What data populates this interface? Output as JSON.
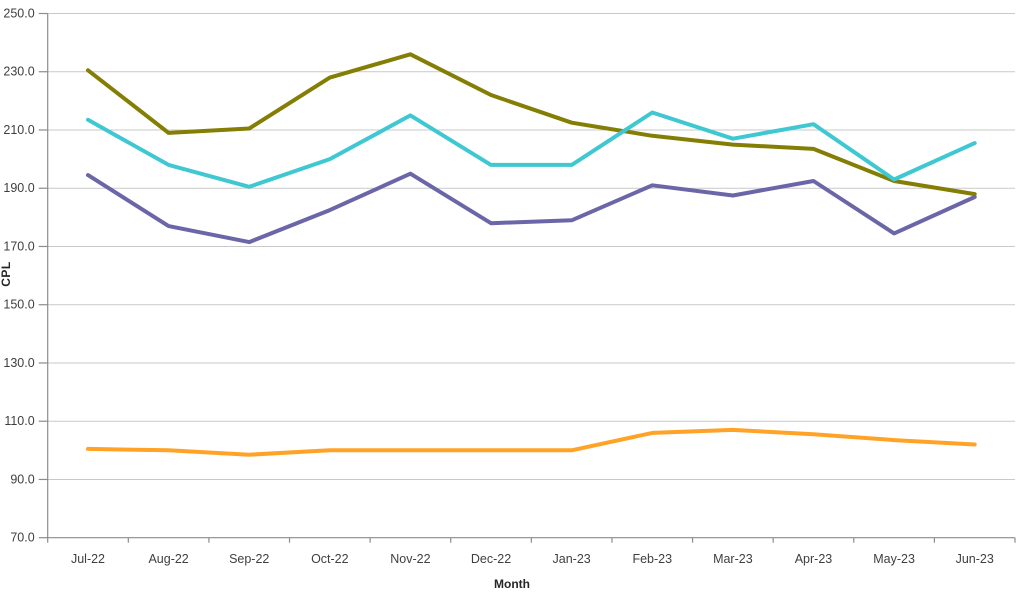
{
  "chart_data": {
    "type": "line",
    "title": "",
    "xlabel": "Month",
    "ylabel": "CPL",
    "ylim": [
      70,
      250
    ],
    "ytick_step": 20,
    "ytick_labels": [
      "70.0",
      "90.0",
      "110.0",
      "130.0",
      "150.0",
      "170.0",
      "190.0",
      "210.0",
      "230.0",
      "250.0"
    ],
    "grid": true,
    "legend_position": "none",
    "categories": [
      "Jul-22",
      "Aug-22",
      "Sep-22",
      "Oct-22",
      "Nov-22",
      "Dec-22",
      "Jan-23",
      "Feb-23",
      "Mar-23",
      "Apr-23",
      "May-23",
      "Jun-23"
    ],
    "series": [
      {
        "name": "olive-series",
        "color": "#847E04",
        "values": [
          230.5,
          209.0,
          210.5,
          228.0,
          236.0,
          222.0,
          212.5,
          208.0,
          205.0,
          203.5,
          192.5,
          188.0
        ]
      },
      {
        "name": "cyan-series",
        "color": "#3FC8D1",
        "values": [
          213.5,
          198.0,
          190.5,
          200.0,
          215.0,
          198.0,
          198.0,
          216.0,
          207.0,
          212.0,
          193.0,
          205.5
        ]
      },
      {
        "name": "purple-series",
        "color": "#6A66A8",
        "values": [
          194.5,
          177.0,
          171.5,
          182.5,
          195.0,
          178.0,
          179.0,
          191.0,
          187.5,
          192.5,
          174.5,
          187.0
        ]
      },
      {
        "name": "orange-series",
        "color": "#FFA326",
        "values": [
          100.5,
          100.0,
          98.5,
          100.0,
          100.0,
          100.0,
          100.0,
          106.0,
          107.0,
          105.5,
          103.5,
          102.0
        ]
      }
    ]
  },
  "styles": {
    "background": "#FFFFFF",
    "grid_color": "#C9C9C9",
    "axis_color": "#8C8C8C",
    "tick_label_color": "#3F3F3F",
    "axis_title_color": "#262626",
    "line_width": 4
  }
}
